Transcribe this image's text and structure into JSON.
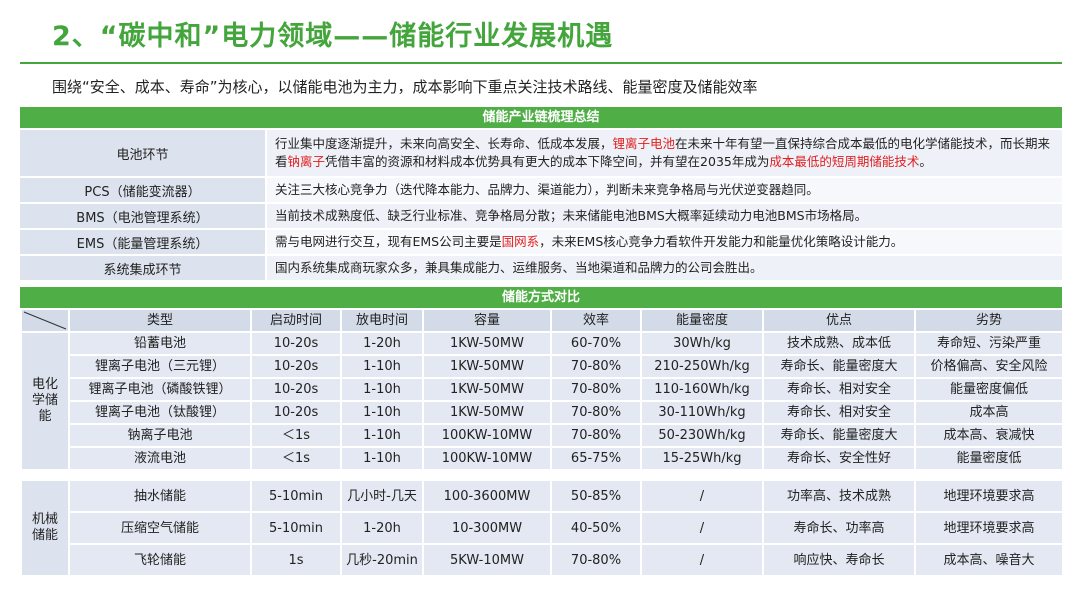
{
  "title": "2、“碳中和”电力领域——储能行业发展机遇",
  "subtitle": "围绕“安全、成本、寿命”为核心，以储能电池为主力，成本影响下重点关注技术路线、能量密度及储能效率",
  "chain": {
    "header": "储能产业链梳理总结",
    "rows": [
      {
        "label": "电池环节",
        "segments": [
          {
            "text": "行业集中度逐渐提升，未来向高安全、长寿命、低成本发展，",
            "hl": false
          },
          {
            "text": "锂离子电池",
            "hl": true
          },
          {
            "text": "在未来十年有望一直保持综合成本最低的电化学储能技术，而长期来看",
            "hl": false
          },
          {
            "text": "钠离子",
            "hl": true
          },
          {
            "text": "凭借丰富的资源和材料成本优势具有更大的成本下降空间，并有望在2035年成为",
            "hl": false
          },
          {
            "text": "成本最低的短周期储能技术",
            "hl": true
          },
          {
            "text": "。",
            "hl": false
          }
        ]
      },
      {
        "label": "PCS（储能变流器）",
        "segments": [
          {
            "text": "关注三大核心竞争力（迭代降本能力、品牌力、渠道能力），判断未来竞争格局与光伏逆变器趋同。",
            "hl": false
          }
        ]
      },
      {
        "label": "BMS（电池管理系统）",
        "segments": [
          {
            "text": "当前技术成熟度低、缺乏行业标准、竞争格局分散；未来储能电池BMS大概率延续动力电池BMS市场格局。",
            "hl": false
          }
        ]
      },
      {
        "label": "EMS（能量管理系统）",
        "segments": [
          {
            "text": "需与电网进行交互，现有EMS公司主要是",
            "hl": false
          },
          {
            "text": "国网系",
            "hl": true
          },
          {
            "text": "，未来EMS核心竞争力看软件开发能力和能量优化策略设计能力。",
            "hl": false
          }
        ]
      },
      {
        "label": "系统集成环节",
        "segments": [
          {
            "text": "国内系统集成商玩家众多，兼具集成能力、运维服务、当地渠道和品牌力的公司会胜出。",
            "hl": false
          }
        ]
      }
    ]
  },
  "compare": {
    "header": "储能方式对比",
    "columns": [
      "类型",
      "启动时间",
      "放电时间",
      "容量",
      "效率",
      "能量密度",
      "优点",
      "劣势"
    ],
    "groups": [
      {
        "name": "电化学储能",
        "rows": [
          [
            "铅蓄电池",
            "10-20s",
            "1-20h",
            "1KW-50MW",
            "60-70%",
            "30Wh/kg",
            "技术成熟、成本低",
            "寿命短、污染严重"
          ],
          [
            "锂离子电池（三元锂）",
            "10-20s",
            "1-10h",
            "1KW-50MW",
            "70-80%",
            "210-250Wh/kg",
            "寿命长、能量密度大",
            "价格偏高、安全风险"
          ],
          [
            "锂离子电池（磷酸铁锂）",
            "10-20s",
            "1-10h",
            "1KW-50MW",
            "70-80%",
            "110-160Wh/kg",
            "寿命长、相对安全",
            "能量密度偏低"
          ],
          [
            "锂离子电池（钛酸锂）",
            "10-20s",
            "1-10h",
            "1KW-50MW",
            "70-80%",
            "30-110Wh/kg",
            "寿命长、相对安全",
            "成本高"
          ],
          [
            "钠离子电池",
            "＜1s",
            "1-10h",
            "100KW-10MW",
            "70-80%",
            "50-230Wh/kg",
            "寿命长、能量密度大",
            "成本高、衰减快"
          ],
          [
            "液流电池",
            "＜1s",
            "1-10h",
            "100KW-10MW",
            "65-75%",
            "15-25Wh/kg",
            "寿命长、安全性好",
            "能量密度低"
          ]
        ]
      },
      {
        "name": "机械储能",
        "rows": [
          [
            "抽水储能",
            "5-10min",
            "几小时-几天",
            "100-3600MW",
            "50-85%",
            "/",
            "功率高、技术成熟",
            "地理环境要求高"
          ],
          [
            "压缩空气储能",
            "5-10min",
            "1-20h",
            "10-300MW",
            "40-50%",
            "/",
            "寿命长、功率高",
            "地理环境要求高"
          ],
          [
            "飞轮储能",
            "1s",
            "几秒-20min",
            "5KW-10MW",
            "70-80%",
            "/",
            "响应快、寿命长",
            "成本高、噪音大"
          ]
        ]
      }
    ]
  }
}
